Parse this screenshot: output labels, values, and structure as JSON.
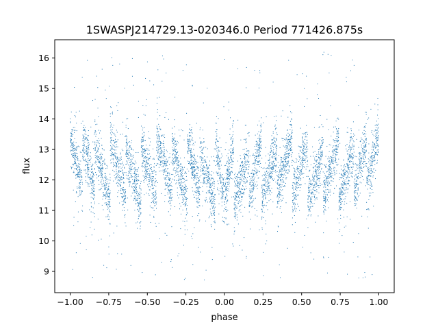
{
  "chart_data": {
    "type": "scatter",
    "title": "1SWASPJ214729.13-020346.0 Period 771426.875s",
    "xlabel": "phase",
    "ylabel": "flux",
    "xlim": [
      -1.1,
      1.1
    ],
    "ylim": [
      8.3,
      16.6
    ],
    "x_ticks": [
      -1.0,
      -0.75,
      -0.5,
      -0.25,
      0.0,
      0.25,
      0.5,
      0.75,
      1.0
    ],
    "x_tick_labels": [
      "−1.00",
      "−0.75",
      "−0.50",
      "−0.25",
      "0.00",
      "0.25",
      "0.50",
      "0.75",
      "1.00"
    ],
    "y_ticks": [
      9,
      10,
      11,
      12,
      13,
      14,
      15,
      16
    ],
    "y_tick_labels": [
      "9",
      "10",
      "11",
      "12",
      "13",
      "14",
      "15",
      "16"
    ],
    "grid": false,
    "legend": "none",
    "point_color": "#1f77b4",
    "series": [
      {
        "phase_range": [
          -1.0,
          1.0
        ],
        "baseline_flux": 12.4,
        "typical_flux_range": [
          11.0,
          14.0
        ],
        "outlier_flux_range": [
          8.7,
          16.2
        ],
        "pattern": "dense vertical streaks of points repeating along phase, roughly mirrored about phase 0"
      }
    ]
  }
}
